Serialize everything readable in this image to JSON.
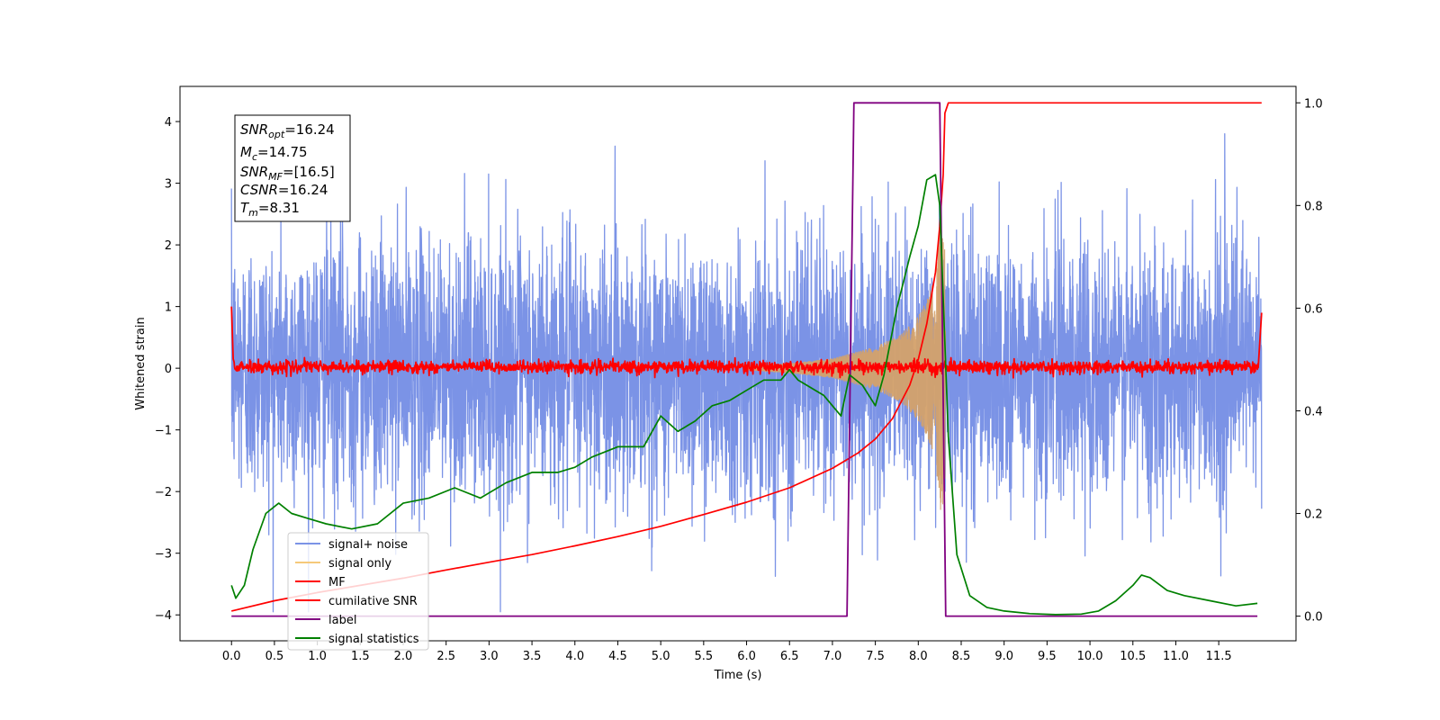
{
  "chart_data": {
    "type": "line",
    "xlabel": "Time (s)",
    "ylabel_left": "Whitened strain",
    "ylabel_right": "",
    "xlim": [
      -0.6,
      12.4
    ],
    "ylim_left": [
      -4.42,
      4.57
    ],
    "ylim_right": [
      -0.048,
      1.032
    ],
    "x_ticks": [
      "0.0",
      "0.5",
      "1.0",
      "1.5",
      "2.0",
      "2.5",
      "3.0",
      "3.5",
      "4.0",
      "4.5",
      "5.0",
      "5.5",
      "6.0",
      "6.5",
      "7.0",
      "7.5",
      "8.0",
      "8.5",
      "9.0",
      "9.5",
      "10.0",
      "10.5",
      "11.0",
      "11.5"
    ],
    "y_ticks_left": [
      "4",
      "3",
      "2",
      "1",
      "0",
      "−1",
      "−2",
      "−3",
      "−4"
    ],
    "y_ticks_right": [
      "1.0",
      "0.8",
      "0.6",
      "0.4",
      "0.2",
      "0.0"
    ],
    "legend_position": "lower-left",
    "annotation": {
      "snr_opt": {
        "sym": "SNR",
        "sub": "opt",
        "value": "=16.24"
      },
      "mc": {
        "sym": "M",
        "sub": "c",
        "value": "=14.75"
      },
      "snr_mf": {
        "sym": "SNR",
        "sub": "MF",
        "value": "=[16.5]"
      },
      "csnr": {
        "sym": "CSNR",
        "sub": "",
        "value": "=16.24"
      },
      "tm": {
        "sym": "T",
        "sub": "m",
        "value": "=8.31"
      }
    },
    "series": [
      {
        "name": "signal+ noise",
        "color": "#7b93e6",
        "axis": "left",
        "kind": "noise",
        "x_range": [
          0,
          12
        ],
        "sigma": 1.0
      },
      {
        "name": "signal only",
        "color": "#f5c97a",
        "axis": "left",
        "kind": "chirp-envelope",
        "x": [
          6.0,
          6.5,
          7.0,
          7.5,
          7.8,
          8.0,
          8.1,
          8.2,
          8.27,
          8.31,
          8.32
        ],
        "amplitude": [
          0.03,
          0.08,
          0.16,
          0.35,
          0.55,
          0.85,
          1.1,
          1.5,
          2.5,
          1.9,
          0.0
        ]
      },
      {
        "name": "MF",
        "color": "#ff0000",
        "axis": "left",
        "kind": "mf",
        "x_range": [
          0,
          12
        ],
        "baseline": 0.02,
        "noise": 0.05,
        "start_value": 1.0,
        "end_value": 0.9
      },
      {
        "name": "cumilative SNR",
        "color": "#ff0000",
        "axis": "right",
        "x": [
          0.0,
          0.05,
          0.5,
          1.0,
          1.5,
          2.0,
          2.5,
          3.0,
          3.5,
          4.0,
          4.5,
          5.0,
          5.5,
          6.0,
          6.5,
          7.0,
          7.3,
          7.5,
          7.7,
          7.9,
          8.0,
          8.1,
          8.2,
          8.25,
          8.29,
          8.31,
          8.35,
          9.0,
          10.0,
          11.0,
          12.0
        ],
        "values": [
          0.01,
          0.012,
          0.03,
          0.046,
          0.06,
          0.074,
          0.09,
          0.105,
          0.12,
          0.137,
          0.155,
          0.175,
          0.198,
          0.222,
          0.25,
          0.288,
          0.318,
          0.345,
          0.385,
          0.45,
          0.5,
          0.57,
          0.67,
          0.76,
          0.86,
          0.98,
          1.0,
          1.0,
          1.0,
          1.0,
          1.0
        ]
      },
      {
        "name": "label",
        "color": "#800080",
        "axis": "right",
        "x": [
          0.0,
          7.17,
          7.25,
          8.25,
          8.32,
          11.95
        ],
        "values": [
          0,
          0,
          1,
          1,
          0,
          0
        ]
      },
      {
        "name": "signal statistics",
        "color": "#008000",
        "axis": "right",
        "x": [
          0.0,
          0.05,
          0.15,
          0.25,
          0.4,
          0.55,
          0.7,
          0.9,
          1.1,
          1.4,
          1.7,
          2.0,
          2.3,
          2.6,
          2.9,
          3.2,
          3.5,
          3.8,
          4.0,
          4.2,
          4.5,
          4.8,
          5.0,
          5.2,
          5.4,
          5.6,
          5.8,
          6.0,
          6.2,
          6.4,
          6.5,
          6.6,
          6.7,
          6.9,
          7.0,
          7.1,
          7.2,
          7.35,
          7.5,
          7.6,
          7.75,
          7.9,
          8.0,
          8.1,
          8.2,
          8.25,
          8.35,
          8.45,
          8.6,
          8.8,
          9.0,
          9.3,
          9.6,
          9.9,
          10.1,
          10.3,
          10.5,
          10.6,
          10.7,
          10.9,
          11.1,
          11.4,
          11.7,
          11.95
        ],
        "values": [
          0.06,
          0.035,
          0.06,
          0.13,
          0.2,
          0.22,
          0.2,
          0.19,
          0.18,
          0.17,
          0.18,
          0.22,
          0.23,
          0.25,
          0.23,
          0.26,
          0.28,
          0.28,
          0.29,
          0.31,
          0.33,
          0.33,
          0.39,
          0.36,
          0.38,
          0.41,
          0.42,
          0.44,
          0.46,
          0.46,
          0.48,
          0.46,
          0.45,
          0.43,
          0.41,
          0.39,
          0.47,
          0.45,
          0.41,
          0.47,
          0.6,
          0.7,
          0.76,
          0.85,
          0.86,
          0.8,
          0.35,
          0.12,
          0.04,
          0.017,
          0.01,
          0.005,
          0.003,
          0.004,
          0.01,
          0.03,
          0.06,
          0.08,
          0.075,
          0.05,
          0.04,
          0.03,
          0.02,
          0.025
        ]
      }
    ]
  }
}
